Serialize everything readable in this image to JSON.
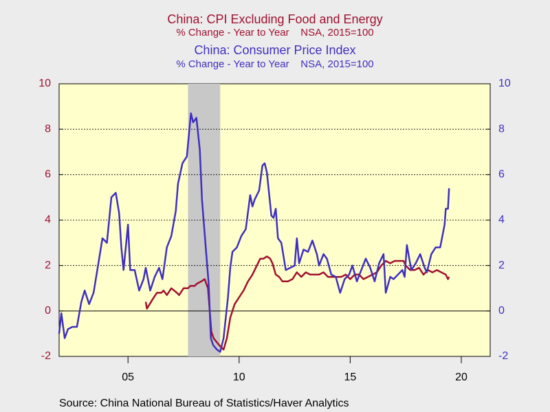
{
  "chart_data": {
    "type": "line",
    "source": "Source:  China National Bureau of Statistics/Haver Analytics",
    "series": [
      {
        "name": "China: CPI Excluding Food and Energy",
        "subtitle": "% Change - Year to Year    NSA, 2015=100",
        "color": "#a0102e",
        "axis": "y",
        "x": [
          2005.8,
          2005.85,
          2006.1,
          2006.3,
          2006.5,
          2006.6,
          2006.75,
          2006.95,
          2007.2,
          2007.3,
          2007.5,
          2007.7,
          2007.8,
          2008.0,
          2008.1,
          2008.3,
          2008.45,
          2008.6,
          2008.75,
          2008.85,
          2009.1,
          2009.3,
          2009.45,
          2009.6,
          2009.8,
          2010.0,
          2010.2,
          2010.4,
          2010.6,
          2010.8,
          2010.95,
          2011.1,
          2011.25,
          2011.4,
          2011.5,
          2011.65,
          2011.8,
          2011.95,
          2012.2,
          2012.4,
          2012.6,
          2012.8,
          2013.0,
          2013.2,
          2013.4,
          2013.6,
          2013.8,
          2014.0,
          2014.2,
          2014.4,
          2014.6,
          2014.8,
          2015.0,
          2015.2,
          2015.4,
          2015.6,
          2015.8,
          2016.0,
          2016.2,
          2016.4,
          2016.6,
          2016.8,
          2017.0,
          2017.2,
          2017.4,
          2017.5,
          2017.7,
          2017.9,
          2018.1,
          2018.3,
          2018.5,
          2018.7,
          2018.9,
          2019.1,
          2019.3,
          2019.4,
          2019.45
        ],
        "values": [
          0.4,
          0.1,
          0.5,
          0.8,
          0.8,
          0.9,
          0.7,
          1.0,
          0.8,
          0.7,
          1.0,
          1.0,
          1.1,
          1.1,
          1.2,
          1.3,
          1.4,
          1.0,
          -0.9,
          -1.2,
          -1.5,
          -1.7,
          -1.2,
          -0.3,
          0.3,
          0.6,
          0.9,
          1.3,
          1.6,
          2.0,
          2.3,
          2.3,
          2.4,
          2.3,
          2.1,
          1.6,
          1.5,
          1.3,
          1.3,
          1.4,
          1.7,
          1.5,
          1.7,
          1.6,
          1.6,
          1.6,
          1.7,
          1.5,
          1.5,
          1.5,
          1.5,
          1.6,
          1.4,
          1.6,
          1.6,
          1.4,
          1.5,
          1.6,
          1.7,
          2.0,
          2.2,
          2.1,
          2.2,
          2.2,
          2.2,
          2.0,
          1.8,
          1.8,
          1.9,
          1.6,
          1.8,
          1.7,
          1.8,
          1.7,
          1.6,
          1.4,
          1.5
        ]
      },
      {
        "name": "China: Consumer Price Index",
        "subtitle": "% Change - Year to Year    NSA, 2015=100",
        "color": "#3f2fbf",
        "axis": "y2",
        "x": [
          2001.9,
          2002.0,
          2002.15,
          2002.3,
          2002.5,
          2002.7,
          2002.9,
          2003.05,
          2003.25,
          2003.45,
          2003.65,
          2003.85,
          2004.05,
          2004.25,
          2004.45,
          2004.6,
          2004.7,
          2004.8,
          2005.0,
          2005.1,
          2005.3,
          2005.5,
          2005.7,
          2005.8,
          2006.0,
          2006.2,
          2006.4,
          2006.55,
          2006.75,
          2006.95,
          2007.15,
          2007.25,
          2007.45,
          2007.65,
          2007.83,
          2007.93,
          2008.08,
          2008.23,
          2008.33,
          2008.53,
          2008.63,
          2008.73,
          2008.83,
          2009.0,
          2009.15,
          2009.3,
          2009.5,
          2009.6,
          2009.7,
          2009.9,
          2010.1,
          2010.3,
          2010.5,
          2010.6,
          2010.7,
          2010.9,
          2011.05,
          2011.15,
          2011.25,
          2011.45,
          2011.55,
          2011.65,
          2011.75,
          2011.9,
          2012.1,
          2012.3,
          2012.5,
          2012.6,
          2012.7,
          2012.9,
          2013.1,
          2013.3,
          2013.5,
          2013.6,
          2013.8,
          2013.95,
          2014.15,
          2014.35,
          2014.55,
          2014.75,
          2014.95,
          2015.1,
          2015.3,
          2015.5,
          2015.7,
          2015.9,
          2016.1,
          2016.3,
          2016.5,
          2016.6,
          2016.8,
          2016.95,
          2017.15,
          2017.35,
          2017.45,
          2017.55,
          2017.75,
          2017.95,
          2018.15,
          2018.35,
          2018.45,
          2018.65,
          2018.85,
          2019.05,
          2019.25,
          2019.3,
          2019.4,
          2019.45
        ],
        "values": [
          -1.0,
          -0.1,
          -1.2,
          -0.8,
          -0.7,
          -0.7,
          0.4,
          0.9,
          0.3,
          0.8,
          2.0,
          3.2,
          3.0,
          5.0,
          5.2,
          4.3,
          2.8,
          1.8,
          3.8,
          1.8,
          1.8,
          0.9,
          1.4,
          1.9,
          0.9,
          1.5,
          1.9,
          1.4,
          2.8,
          3.3,
          4.4,
          5.6,
          6.5,
          6.8,
          8.7,
          8.3,
          8.5,
          7.1,
          4.9,
          2.4,
          1.2,
          -1.2,
          -1.5,
          -1.7,
          -1.8,
          -1.2,
          0.6,
          1.9,
          2.6,
          2.8,
          3.3,
          3.6,
          5.1,
          4.6,
          4.9,
          5.3,
          6.4,
          6.5,
          6.1,
          4.2,
          4.1,
          4.5,
          3.2,
          3.0,
          1.8,
          1.9,
          2.0,
          3.2,
          2.1,
          2.7,
          2.6,
          3.1,
          2.5,
          2.0,
          2.5,
          2.3,
          1.6,
          1.5,
          0.8,
          1.4,
          1.6,
          2.0,
          1.3,
          1.8,
          2.3,
          1.9,
          1.3,
          2.1,
          2.5,
          0.8,
          1.5,
          1.4,
          1.6,
          1.8,
          1.5,
          2.9,
          1.8,
          2.1,
          2.5,
          1.9,
          1.7,
          2.5,
          2.8,
          2.8,
          3.8,
          4.5,
          4.5,
          5.4
        ]
      }
    ],
    "xlim": [
      2001.9,
      2021.3
    ],
    "xticks": [
      {
        "value": 2005,
        "label": "05"
      },
      {
        "value": 2010,
        "label": "10"
      },
      {
        "value": 2015,
        "label": "15"
      },
      {
        "value": 2020,
        "label": "20"
      }
    ],
    "ylim": [
      -2,
      10
    ],
    "yticks": [
      -2,
      0,
      2,
      4,
      6,
      8,
      10
    ],
    "y2lim": [
      -2,
      10
    ],
    "y2ticks": [
      -2,
      0,
      2,
      4,
      6,
      8,
      10
    ],
    "grid": true,
    "shading": [
      [
        2007.7,
        2009.15
      ]
    ]
  }
}
